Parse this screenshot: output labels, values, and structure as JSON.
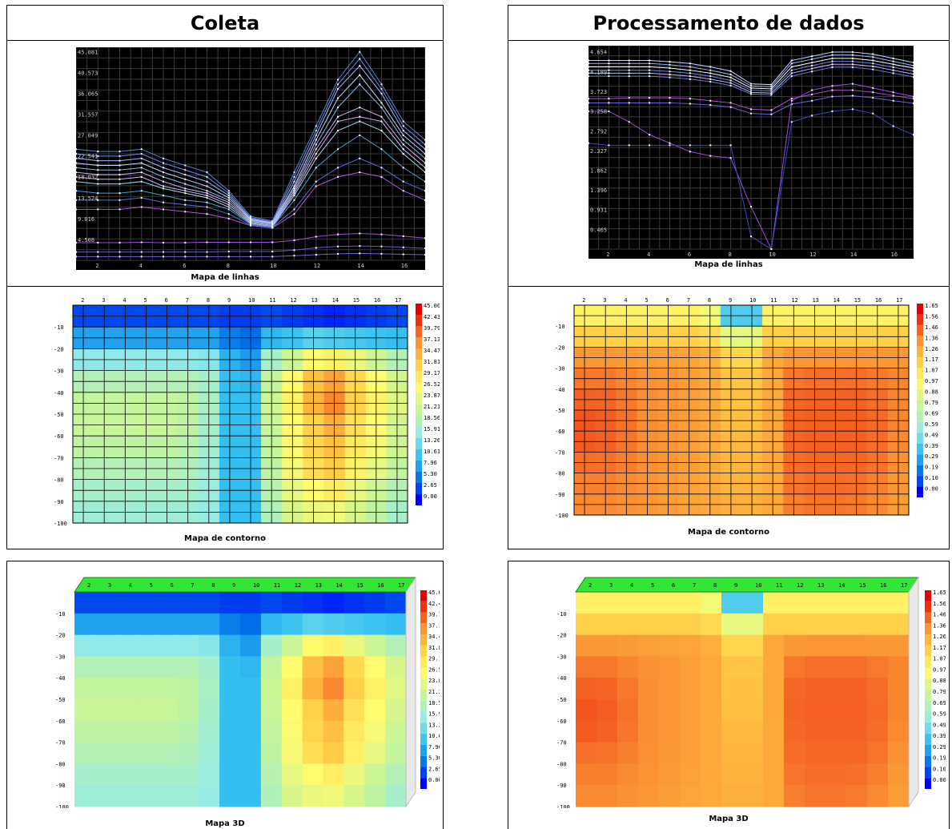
{
  "columns": [
    {
      "id": "coleta",
      "title": "Coleta"
    },
    {
      "id": "proc",
      "title": "Processamento de dados"
    }
  ],
  "captions": {
    "lines": "Mapa de linhas",
    "contour": "Mapa de contorno",
    "map3d": "Mapa 3D"
  },
  "chart_data": [
    {
      "type": "line",
      "panel": "coleta-lines",
      "title": "",
      "grid": true,
      "x_ticks": [
        2,
        4,
        6,
        8,
        10,
        12,
        14,
        16
      ],
      "y_ticks": [
        "4.508",
        "9.016",
        "13.524",
        "18.032",
        "22.541",
        "27.049",
        "31.557",
        "36.065",
        "40.573",
        "45.081"
      ],
      "xlim": [
        1,
        17
      ],
      "ylim": [
        0,
        46
      ],
      "x": [
        1,
        2,
        3,
        4,
        5,
        6,
        7,
        8,
        9,
        10,
        11,
        12,
        13,
        14,
        15,
        16,
        17
      ],
      "series": [
        {
          "color": "#5a7fd6",
          "values": [
            24,
            23.5,
            23.5,
            24,
            22,
            20.5,
            19,
            15,
            9.5,
            8.5,
            19,
            29,
            39,
            45,
            38,
            30,
            26
          ]
        },
        {
          "color": "#6b8ef0",
          "values": [
            23,
            22.5,
            22.5,
            23,
            21,
            19.5,
            18,
            14.5,
            9.2,
            8.3,
            18,
            28,
            38,
            43.5,
            37,
            29,
            25
          ]
        },
        {
          "color": "#9fb8ff",
          "values": [
            22,
            21.5,
            21.5,
            22,
            20,
            18.5,
            17,
            14,
            9,
            8.1,
            17,
            27,
            37,
            42,
            36,
            28,
            24
          ]
        },
        {
          "color": "#c9d6ff",
          "values": [
            21,
            20.5,
            20.5,
            21,
            19,
            17.5,
            16,
            13.5,
            8.8,
            8,
            16,
            26,
            35,
            40,
            34,
            27,
            23
          ]
        },
        {
          "color": "#8ab8e6",
          "values": [
            20,
            19.5,
            19.5,
            20,
            18,
            16.5,
            15,
            13,
            8.6,
            7.9,
            15.5,
            25,
            33,
            38,
            33,
            26,
            22
          ]
        },
        {
          "color": "#d4b0f2",
          "values": [
            19,
            18.5,
            18.5,
            19,
            17,
            15.5,
            14.5,
            12.5,
            8.4,
            7.7,
            15,
            24,
            31,
            33,
            31,
            25,
            21
          ]
        },
        {
          "color": "#c9b8ff",
          "values": [
            18,
            17.5,
            17.5,
            18,
            16,
            15,
            14,
            12,
            8.2,
            7.5,
            14.5,
            23,
            30,
            31,
            30,
            24,
            20
          ]
        },
        {
          "color": "#a4d7e8",
          "values": [
            17,
            16.5,
            16.5,
            17,
            15.5,
            14.5,
            13.5,
            11.5,
            8,
            7.3,
            14,
            22,
            28,
            30,
            28,
            23,
            19
          ]
        },
        {
          "color": "#4aa0c8",
          "values": [
            15,
            14.5,
            14.5,
            15,
            14,
            13,
            12.5,
            11,
            7.8,
            7.2,
            13,
            20,
            24,
            27,
            24,
            20,
            17
          ]
        },
        {
          "color": "#b255d8",
          "values": [
            11,
            11,
            11,
            11.5,
            11,
            10.5,
            10,
            9,
            7.5,
            7,
            10,
            16,
            18,
            19,
            18,
            15,
            13
          ]
        },
        {
          "color": "#5a6ad8",
          "values": [
            13,
            13,
            13,
            13.5,
            12.5,
            12,
            11.5,
            10,
            7.6,
            7.1,
            11,
            17,
            20,
            22,
            20,
            17,
            15
          ]
        },
        {
          "color": "#9a4fd8",
          "values": [
            3.8,
            3.8,
            3.8,
            3.9,
            3.8,
            3.8,
            3.9,
            3.9,
            3.9,
            3.9,
            4.3,
            5.1,
            5.6,
            5.8,
            5.6,
            5.2,
            4.8
          ]
        },
        {
          "color": "#7555c4",
          "values": [
            1.8,
            1.8,
            1.8,
            1.8,
            1.8,
            1.8,
            1.8,
            1.9,
            1.9,
            1.9,
            2.2,
            2.7,
            3,
            3.1,
            3,
            2.8,
            2.6
          ]
        },
        {
          "color": "#6a62e0",
          "values": [
            0.8,
            0.8,
            0.8,
            0.8,
            0.8,
            0.8,
            0.8,
            0.8,
            0.8,
            0.8,
            1,
            1.2,
            1.4,
            1.5,
            1.4,
            1.3,
            1.2
          ]
        }
      ]
    },
    {
      "type": "line",
      "panel": "proc-lines",
      "title": "",
      "grid": true,
      "x_ticks": [
        2,
        4,
        6,
        8,
        10,
        12,
        14,
        16
      ],
      "y_ticks": [
        "0.465",
        "0.931",
        "1.396",
        "1.862",
        "2.327",
        "2.792",
        "3.258",
        "3.723",
        "4.189",
        "4.654"
      ],
      "xlim": [
        1,
        17
      ],
      "ylim": [
        0,
        4.8
      ],
      "x": [
        1,
        2,
        3,
        4,
        5,
        6,
        7,
        8,
        9,
        10,
        11,
        12,
        13,
        14,
        15,
        16,
        17
      ],
      "series": [
        {
          "color": "#c9d6ff",
          "values": [
            4.45,
            4.45,
            4.45,
            4.45,
            4.42,
            4.38,
            4.3,
            4.2,
            3.9,
            3.88,
            4.45,
            4.55,
            4.65,
            4.65,
            4.6,
            4.5,
            4.4
          ]
        },
        {
          "color": "#9fb8ff",
          "values": [
            4.38,
            4.38,
            4.38,
            4.38,
            4.35,
            4.3,
            4.22,
            4.12,
            3.85,
            3.83,
            4.38,
            4.48,
            4.58,
            4.58,
            4.53,
            4.43,
            4.33
          ]
        },
        {
          "color": "#ffffff",
          "values": [
            4.3,
            4.3,
            4.3,
            4.3,
            4.27,
            4.22,
            4.15,
            4.05,
            3.8,
            3.78,
            4.3,
            4.4,
            4.5,
            4.5,
            4.45,
            4.36,
            4.27
          ]
        },
        {
          "color": "#6b8ef0",
          "values": [
            4.22,
            4.22,
            4.22,
            4.22,
            4.19,
            4.15,
            4.08,
            3.98,
            3.75,
            3.73,
            4.22,
            4.33,
            4.43,
            4.43,
            4.38,
            4.29,
            4.2
          ]
        },
        {
          "color": "#d4b0f2",
          "values": [
            4.15,
            4.15,
            4.15,
            4.15,
            4.12,
            4.08,
            4.01,
            3.92,
            3.7,
            3.68,
            4.15,
            4.26,
            4.36,
            4.36,
            4.31,
            4.22,
            4.13
          ]
        },
        {
          "color": "#5a7fd6",
          "values": [
            4.08,
            4.08,
            4.08,
            4.08,
            4.05,
            4.01,
            3.95,
            3.86,
            3.66,
            3.64,
            4.08,
            4.19,
            4.29,
            4.29,
            4.24,
            4.15,
            4.06
          ]
        },
        {
          "color": "#b04fd8",
          "values": [
            3.55,
            3.55,
            3.57,
            3.57,
            3.57,
            3.55,
            3.5,
            3.45,
            3.3,
            3.28,
            3.55,
            3.65,
            3.75,
            3.75,
            3.7,
            3.62,
            3.55
          ]
        },
        {
          "color": "#6a62e0",
          "values": [
            3.45,
            3.45,
            3.45,
            3.45,
            3.45,
            3.43,
            3.4,
            3.35,
            3.2,
            3.18,
            3.42,
            3.5,
            3.6,
            3.62,
            3.57,
            3.5,
            3.44
          ]
        },
        {
          "color": "#9a4fd8",
          "values": [
            3.25,
            3.25,
            3.0,
            2.7,
            2.5,
            2.3,
            2.2,
            2.15,
            1.0,
            0,
            3.5,
            3.75,
            3.85,
            3.9,
            3.8,
            3.7,
            3.6
          ]
        },
        {
          "color": "#3a4acb",
          "values": [
            2.5,
            2.45,
            2.45,
            2.45,
            2.45,
            2.45,
            2.45,
            2.45,
            0.3,
            0,
            3.0,
            3.15,
            3.25,
            3.3,
            3.2,
            2.9,
            2.7
          ]
        }
      ]
    },
    {
      "type": "heatmap",
      "panel": "coleta-contour",
      "title": "",
      "x_ticks": [
        "2",
        "3",
        "4",
        "5",
        "6",
        "7",
        "8",
        "9",
        "10",
        "11",
        "12",
        "13",
        "14",
        "15",
        "16",
        "17"
      ],
      "y_ticks": [
        "-10",
        "-20",
        "-30",
        "-40",
        "-50",
        "-60",
        "-70",
        "-80",
        "-90",
        "-100"
      ],
      "legend_values": [
        "45.00",
        "42.43",
        "39.79",
        "37.13",
        "34.47",
        "31.81",
        "29.17",
        "26.52",
        "23.87",
        "21.21",
        "18.56",
        "15.91",
        "13.26",
        "10.61",
        "7.96",
        "5.30",
        "2.65",
        "0.00"
      ],
      "x": [
        2,
        3,
        4,
        5,
        6,
        7,
        8,
        9,
        10,
        11,
        12,
        13,
        14,
        15,
        16,
        17
      ],
      "y": [
        -5,
        -10,
        -20,
        -30,
        -40,
        -50,
        -60,
        -70,
        -80,
        -90,
        -100
      ],
      "z": [
        [
          2,
          2,
          2,
          2,
          2,
          2,
          2,
          2,
          2,
          2,
          2,
          2,
          2,
          2,
          2,
          2
        ],
        [
          4,
          4,
          4,
          4,
          4,
          4,
          4,
          3,
          3,
          4,
          3,
          2,
          1,
          2,
          3,
          4
        ],
        [
          12,
          12,
          12,
          12,
          12,
          12,
          12,
          8,
          6,
          15,
          18,
          22,
          22,
          20,
          18,
          16
        ],
        [
          18,
          18,
          18,
          18,
          18,
          18,
          17,
          10,
          9,
          20,
          26,
          32,
          34,
          30,
          26,
          22
        ],
        [
          20,
          20,
          20,
          20,
          20,
          20,
          18,
          10,
          10,
          22,
          28,
          35,
          38,
          32,
          28,
          24
        ],
        [
          22,
          22,
          22,
          22,
          22,
          21,
          18,
          10,
          10,
          22,
          28,
          34,
          38,
          32,
          28,
          24
        ],
        [
          21,
          21,
          21,
          21,
          21,
          20,
          17,
          10,
          10,
          21,
          26,
          30,
          32,
          28,
          26,
          22
        ],
        [
          20,
          20,
          20,
          20,
          20,
          19,
          17,
          10,
          10,
          21,
          27,
          33,
          35,
          30,
          26,
          22
        ],
        [
          18,
          18,
          18,
          18,
          18,
          18,
          16,
          10,
          10,
          20,
          25,
          28,
          30,
          26,
          23,
          20
        ],
        [
          17,
          17,
          17,
          17,
          17,
          17,
          16,
          10,
          10,
          19,
          24,
          26,
          27,
          24,
          21,
          18
        ],
        [
          16,
          16,
          16,
          16,
          16,
          16,
          15,
          10,
          10,
          18,
          22,
          24,
          24,
          22,
          20,
          17
        ]
      ]
    },
    {
      "type": "heatmap",
      "panel": "proc-contour",
      "title": "",
      "x_ticks": [
        "2",
        "3",
        "4",
        "5",
        "6",
        "7",
        "8",
        "9",
        "10",
        "11",
        "12",
        "13",
        "14",
        "15",
        "16",
        "17"
      ],
      "y_ticks": [
        "-10",
        "-20",
        "-30",
        "-40",
        "-50",
        "-60",
        "-70",
        "-80",
        "-90",
        "-100"
      ],
      "legend_values": [
        "1.65",
        "1.56",
        "1.46",
        "1.36",
        "1.26",
        "1.17",
        "1.07",
        "0.97",
        "0.88",
        "0.79",
        "0.69",
        "0.59",
        "0.49",
        "0.39",
        "0.29",
        "0.19",
        "0.10",
        "0.00"
      ],
      "x": [
        2,
        3,
        4,
        5,
        6,
        7,
        8,
        9,
        10,
        11,
        12,
        13,
        14,
        15,
        16,
        17
      ],
      "y": [
        -5,
        -10,
        -20,
        -30,
        -40,
        -50,
        -60,
        -70,
        -80,
        -90,
        -100
      ],
      "z": [
        [
          1.0,
          1.0,
          1.0,
          1.0,
          1.0,
          1.0,
          0.9,
          0.15,
          0.15,
          1.0,
          1.0,
          1.0,
          1.0,
          1.0,
          1.0,
          1.0
        ],
        [
          1.05,
          1.05,
          1.05,
          1.05,
          1.05,
          1.05,
          1.0,
          0.7,
          0.7,
          1.05,
          1.05,
          1.05,
          1.05,
          1.05,
          1.05,
          1.05
        ],
        [
          1.3,
          1.3,
          1.3,
          1.3,
          1.3,
          1.3,
          1.25,
          1.1,
          1.1,
          1.3,
          1.3,
          1.3,
          1.3,
          1.3,
          1.3,
          1.3
        ],
        [
          1.4,
          1.4,
          1.38,
          1.36,
          1.35,
          1.33,
          1.3,
          1.2,
          1.2,
          1.3,
          1.4,
          1.42,
          1.42,
          1.42,
          1.4,
          1.4
        ],
        [
          1.45,
          1.45,
          1.42,
          1.38,
          1.36,
          1.33,
          1.3,
          1.22,
          1.22,
          1.3,
          1.45,
          1.46,
          1.46,
          1.46,
          1.44,
          1.4
        ],
        [
          1.48,
          1.47,
          1.43,
          1.38,
          1.36,
          1.33,
          1.3,
          1.23,
          1.23,
          1.3,
          1.46,
          1.47,
          1.47,
          1.47,
          1.45,
          1.4
        ],
        [
          1.5,
          1.48,
          1.44,
          1.38,
          1.36,
          1.33,
          1.3,
          1.24,
          1.24,
          1.3,
          1.46,
          1.47,
          1.47,
          1.47,
          1.45,
          1.4
        ],
        [
          1.46,
          1.45,
          1.42,
          1.38,
          1.36,
          1.33,
          1.3,
          1.25,
          1.25,
          1.3,
          1.45,
          1.46,
          1.46,
          1.46,
          1.44,
          1.38
        ],
        [
          1.42,
          1.42,
          1.4,
          1.37,
          1.35,
          1.33,
          1.3,
          1.26,
          1.26,
          1.3,
          1.44,
          1.45,
          1.45,
          1.45,
          1.42,
          1.36
        ],
        [
          1.4,
          1.4,
          1.38,
          1.36,
          1.34,
          1.32,
          1.3,
          1.27,
          1.27,
          1.3,
          1.42,
          1.44,
          1.44,
          1.43,
          1.4,
          1.34
        ],
        [
          1.38,
          1.38,
          1.36,
          1.35,
          1.33,
          1.31,
          1.3,
          1.28,
          1.28,
          1.3,
          1.4,
          1.42,
          1.42,
          1.41,
          1.38,
          1.33
        ]
      ]
    },
    {
      "type": "heatmap",
      "panel": "coleta-3d",
      "title": "",
      "ref": "coleta-contour"
    },
    {
      "type": "heatmap",
      "panel": "proc-3d",
      "title": "",
      "ref": "proc-contour"
    }
  ]
}
